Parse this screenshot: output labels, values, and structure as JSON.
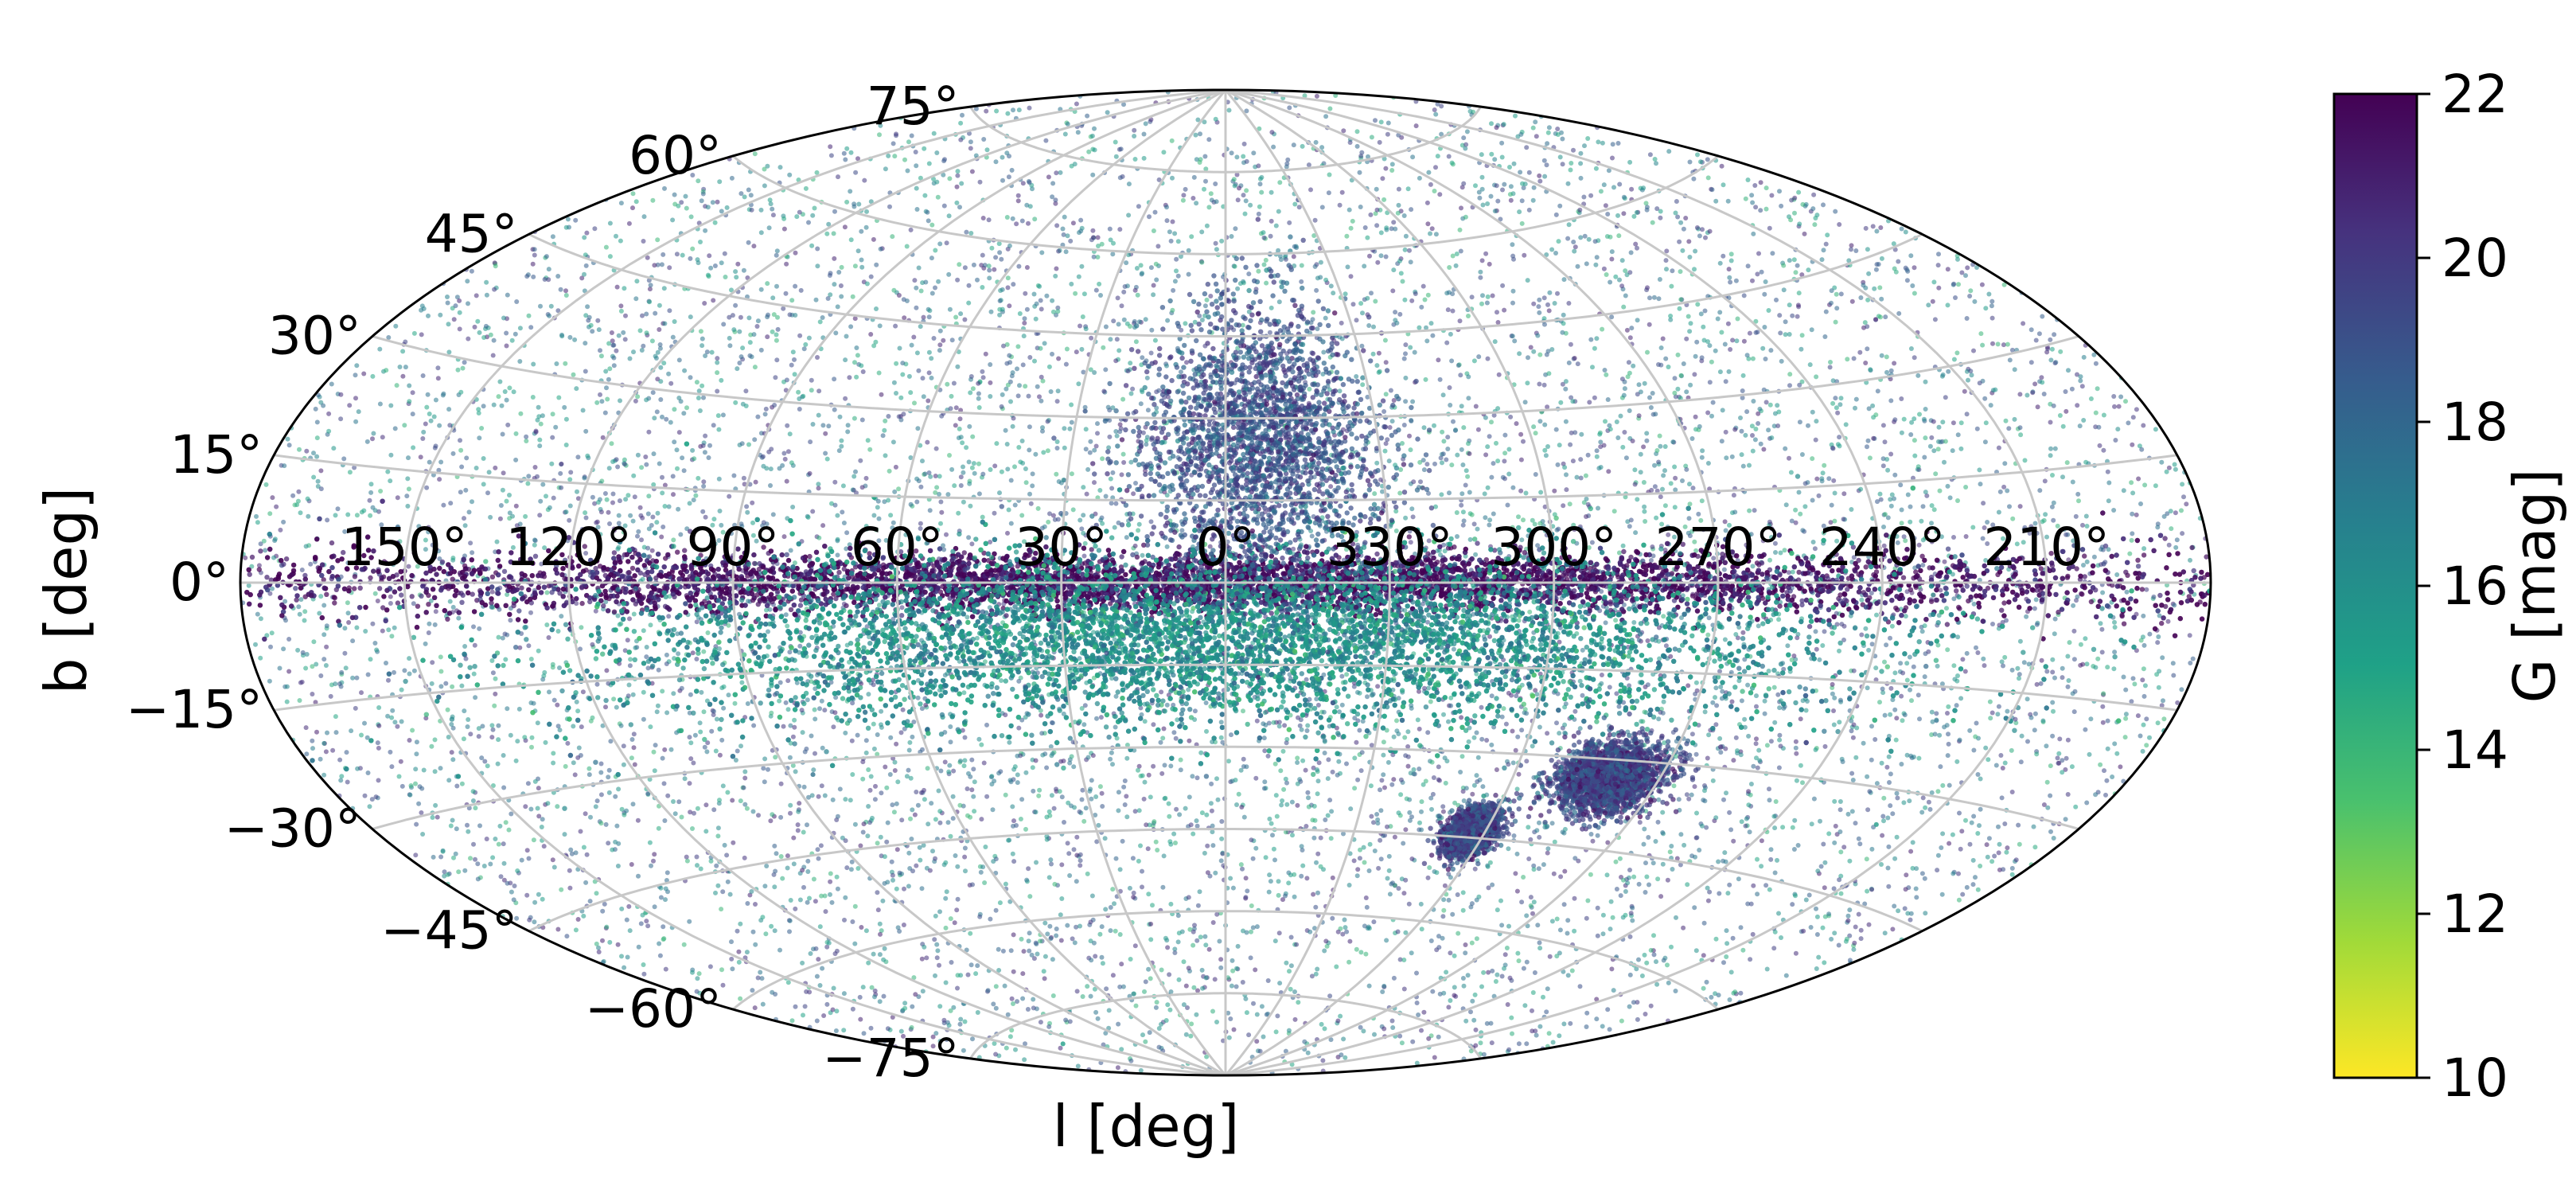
{
  "chart_data": [
    {
      "type": "scatter",
      "projection": "aitoff",
      "xlabel": "l [deg]",
      "ylabel": "b [deg]",
      "longitude_tick_labels": [
        "150°",
        "120°",
        "90°",
        "60°",
        "30°",
        "0°",
        "330°",
        "300°",
        "270°",
        "240°",
        "210°"
      ],
      "longitude_ticks_deg": [
        150,
        120,
        90,
        60,
        30,
        0,
        330,
        300,
        270,
        240,
        210
      ],
      "latitude_tick_labels": [
        "75°",
        "60°",
        "45°",
        "30°",
        "15°",
        "0°",
        "−15°",
        "−30°",
        "−45°",
        "−60°",
        "−75°"
      ],
      "latitude_ticks_deg": [
        75,
        60,
        45,
        30,
        15,
        0,
        -15,
        -30,
        -45,
        -60,
        -75
      ],
      "xlim": [
        180,
        -180
      ],
      "ylim": [
        -90,
        90
      ],
      "grid": true,
      "grid_color": "#c8c8c8",
      "colormap": "viridis_r",
      "features": [
        {
          "l": 0,
          "b": 0,
          "l_extent": 180,
          "b_extent": 5,
          "g_mag": 21.5
        },
        {
          "l": 0,
          "b": -10,
          "l_extent": 120,
          "b_extent": 15,
          "g_mag": 16
        },
        {
          "l": 353,
          "b": 25,
          "l_extent": 25,
          "b_extent": 25,
          "g_mag": 19
        },
        {
          "l": 280,
          "b": -33,
          "l_extent": 12,
          "b_extent": 6,
          "g_mag": 19.5
        },
        {
          "l": 303,
          "b": -44,
          "l_extent": 6,
          "b_extent": 4,
          "g_mag": 19.5
        }
      ]
    },
    {
      "type": "colorbar",
      "label": "G [mag]",
      "tick_labels": [
        "22",
        "20",
        "18",
        "16",
        "14",
        "12",
        "10"
      ],
      "range": [
        10,
        22
      ],
      "colormap": "viridis_r",
      "colors": [
        "#fde725",
        "#a0da39",
        "#4ac16d",
        "#1fa187",
        "#277f8e",
        "#365c8d",
        "#46327e",
        "#440154"
      ]
    }
  ]
}
